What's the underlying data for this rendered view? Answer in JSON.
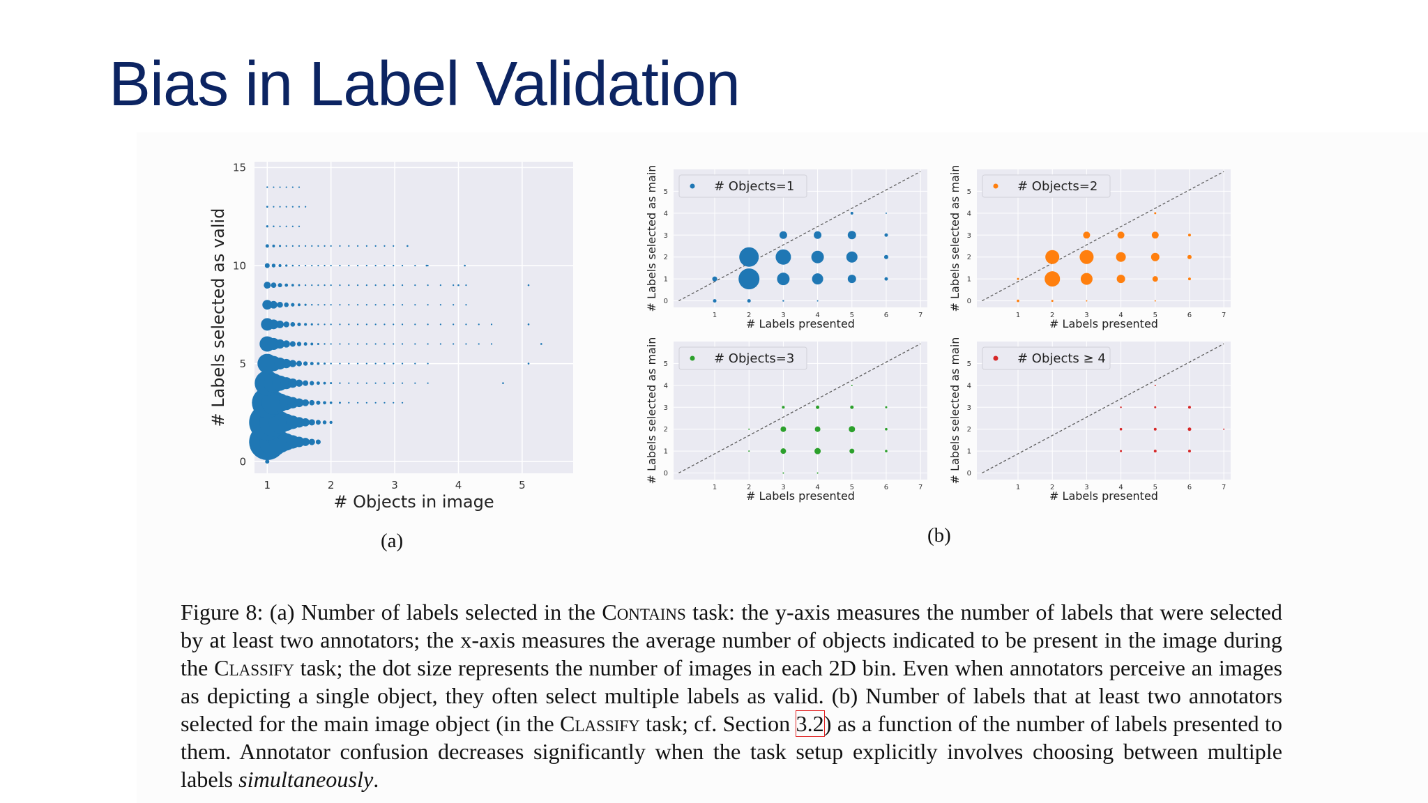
{
  "slide": {
    "title": "Bias in Label Validation"
  },
  "sublabels": {
    "a": "(a)",
    "b": "(b)"
  },
  "caption": {
    "fig": "Figure 8:",
    "p1": "(a) Number of labels selected in the ",
    "sc1": "Contains",
    "p2": " task: the y-axis measures the number of labels that were selected by at least two annotators; the x-axis measures the average number of objects indicated to be present in the image during the ",
    "sc2": "Classify",
    "p3": " task; the dot size represents the number of images in each 2D bin. Even when annotators perceive an images as depicting a single object, they often select multiple labels as valid. (b) Number of labels that at least two annotators selected for the main image object (in the ",
    "sc3": "Classify",
    "p4": " task; cf. Section ",
    "ref": "3.2",
    "p5": ") as a function of the number of labels presented to them. Annotator confusion decreases significantly when the task setup explicitly involves choosing between multiple labels ",
    "em": "simultaneously",
    "p6": "."
  },
  "chart_data": [
    {
      "type": "scatter",
      "title": "",
      "xlabel": "# Objects in image",
      "ylabel": "# Labels selected as valid",
      "xlim": [
        0.8,
        5.8
      ],
      "ylim": [
        -0.6,
        15.3
      ],
      "xticks": [
        1,
        2,
        3,
        4,
        5
      ],
      "yticks": [
        0,
        5,
        10,
        15
      ],
      "grid": true,
      "color": "#1f77b4",
      "note_size": "dot size represents the number of images in each bin",
      "rows": [
        {
          "y": 0,
          "x_max": 1.0,
          "s0": 3
        },
        {
          "y": 1,
          "x_max": 1.8,
          "s0": 26
        },
        {
          "y": 2,
          "x_max": 2.1,
          "s0": 26
        },
        {
          "y": 3,
          "x_max": 3.2,
          "s0": 22
        },
        {
          "y": 4,
          "x_max": 3.6,
          "s0": 18
        },
        {
          "y": 5,
          "x_max": 3.6,
          "s0": 14
        },
        {
          "y": 6,
          "x_max": 4.6,
          "s0": 11
        },
        {
          "y": 7,
          "x_max": 4.6,
          "s0": 9
        },
        {
          "y": 8,
          "x_max": 4.3,
          "s0": 7
        },
        {
          "y": 9,
          "x_max": 4.3,
          "s0": 5
        },
        {
          "y": 10,
          "x_max": 3.6,
          "s0": 3.5
        },
        {
          "y": 11,
          "x_max": 3.0,
          "s0": 2.5
        },
        {
          "y": 12,
          "x_max": 1.5,
          "s0": 1.6
        },
        {
          "y": 13,
          "x_max": 1.6,
          "s0": 1.4
        },
        {
          "y": 14,
          "x_max": 1.5,
          "s0": 1.2
        }
      ],
      "outliers": [
        {
          "x": 3.2,
          "y": 11
        },
        {
          "x": 3.5,
          "y": 10
        },
        {
          "x": 4.1,
          "y": 10
        },
        {
          "x": 4.0,
          "y": 9
        },
        {
          "x": 5.1,
          "y": 9
        },
        {
          "x": 5.1,
          "y": 7
        },
        {
          "x": 5.3,
          "y": 6
        },
        {
          "x": 5.1,
          "y": 5
        },
        {
          "x": 4.7,
          "y": 4
        }
      ]
    },
    {
      "type": "scatter",
      "title": "",
      "legend": "# Objects=1",
      "xlabel": "# Labels presented",
      "ylabel": "# Labels selected as main",
      "xlim": [
        -0.2,
        7.2
      ],
      "ylim": [
        -0.3,
        6.0
      ],
      "xticks": [
        1,
        2,
        3,
        4,
        5,
        6,
        7
      ],
      "yticks": [
        0,
        1,
        2,
        3,
        4,
        5
      ],
      "diagonal": true,
      "color": "#1f77b4",
      "points": [
        {
          "x": 1,
          "y": 0,
          "s": 2.5
        },
        {
          "x": 1,
          "y": 1,
          "s": 3.5
        },
        {
          "x": 2,
          "y": 0,
          "s": 2.5
        },
        {
          "x": 2,
          "y": 1,
          "s": 15
        },
        {
          "x": 2,
          "y": 2,
          "s": 14
        },
        {
          "x": 3,
          "y": 0,
          "s": 1.2
        },
        {
          "x": 3,
          "y": 1,
          "s": 9
        },
        {
          "x": 3,
          "y": 2,
          "s": 11
        },
        {
          "x": 3,
          "y": 3,
          "s": 5.5
        },
        {
          "x": 4,
          "y": 0,
          "s": 1
        },
        {
          "x": 4,
          "y": 1,
          "s": 8
        },
        {
          "x": 4,
          "y": 2,
          "s": 9
        },
        {
          "x": 4,
          "y": 3,
          "s": 5.5
        },
        {
          "x": 5,
          "y": 1,
          "s": 6
        },
        {
          "x": 5,
          "y": 2,
          "s": 8
        },
        {
          "x": 5,
          "y": 3,
          "s": 6
        },
        {
          "x": 5,
          "y": 4,
          "s": 2
        },
        {
          "x": 6,
          "y": 1,
          "s": 2.5
        },
        {
          "x": 6,
          "y": 2,
          "s": 3
        },
        {
          "x": 6,
          "y": 3,
          "s": 2.5
        },
        {
          "x": 6,
          "y": 4,
          "s": 1
        }
      ]
    },
    {
      "type": "scatter",
      "title": "",
      "legend": "# Objects=2",
      "xlabel": "# Labels presented",
      "ylabel": "# Labels selected as main",
      "xlim": [
        -0.2,
        7.2
      ],
      "ylim": [
        -0.3,
        6.0
      ],
      "xticks": [
        1,
        2,
        3,
        4,
        5,
        6,
        7
      ],
      "yticks": [
        0,
        1,
        2,
        3,
        4,
        5
      ],
      "diagonal": true,
      "color": "#ff7f0e",
      "points": [
        {
          "x": 1,
          "y": 0,
          "s": 1.8
        },
        {
          "x": 1,
          "y": 1,
          "s": 1.5
        },
        {
          "x": 2,
          "y": 0,
          "s": 1.5
        },
        {
          "x": 2,
          "y": 1,
          "s": 11
        },
        {
          "x": 2,
          "y": 2,
          "s": 10
        },
        {
          "x": 3,
          "y": 0,
          "s": 1
        },
        {
          "x": 3,
          "y": 1,
          "s": 8.5
        },
        {
          "x": 3,
          "y": 2,
          "s": 10
        },
        {
          "x": 3,
          "y": 3,
          "s": 5
        },
        {
          "x": 4,
          "y": 1,
          "s": 6
        },
        {
          "x": 4,
          "y": 2,
          "s": 7
        },
        {
          "x": 4,
          "y": 3,
          "s": 5
        },
        {
          "x": 5,
          "y": 0,
          "s": 1
        },
        {
          "x": 5,
          "y": 1,
          "s": 4
        },
        {
          "x": 5,
          "y": 2,
          "s": 6
        },
        {
          "x": 5,
          "y": 3,
          "s": 5
        },
        {
          "x": 5,
          "y": 4,
          "s": 1.5
        },
        {
          "x": 6,
          "y": 1,
          "s": 2
        },
        {
          "x": 6,
          "y": 2,
          "s": 3
        },
        {
          "x": 6,
          "y": 3,
          "s": 2
        }
      ]
    },
    {
      "type": "scatter",
      "title": "",
      "legend": "# Objects=3",
      "xlabel": "# Labels presented",
      "ylabel": "# Labels selected as main",
      "xlim": [
        -0.2,
        7.2
      ],
      "ylim": [
        -0.3,
        6.0
      ],
      "xticks": [
        1,
        2,
        3,
        4,
        5,
        6,
        7
      ],
      "yticks": [
        0,
        1,
        2,
        3,
        4,
        5
      ],
      "diagonal": true,
      "color": "#2ca02c",
      "points": [
        {
          "x": 2,
          "y": 1,
          "s": 1
        },
        {
          "x": 2,
          "y": 2,
          "s": 1
        },
        {
          "x": 3,
          "y": 0,
          "s": 1
        },
        {
          "x": 3,
          "y": 1,
          "s": 4
        },
        {
          "x": 3,
          "y": 2,
          "s": 4
        },
        {
          "x": 3,
          "y": 3,
          "s": 2
        },
        {
          "x": 4,
          "y": 0,
          "s": 1
        },
        {
          "x": 4,
          "y": 1,
          "s": 4.5
        },
        {
          "x": 4,
          "y": 2,
          "s": 4
        },
        {
          "x": 4,
          "y": 3,
          "s": 2.5
        },
        {
          "x": 5,
          "y": 1,
          "s": 3.5
        },
        {
          "x": 5,
          "y": 2,
          "s": 4.5
        },
        {
          "x": 5,
          "y": 3,
          "s": 2.5
        },
        {
          "x": 5,
          "y": 4,
          "s": 1
        },
        {
          "x": 6,
          "y": 1,
          "s": 1.8
        },
        {
          "x": 6,
          "y": 2,
          "s": 1.8
        },
        {
          "x": 6,
          "y": 3,
          "s": 1.5
        }
      ]
    },
    {
      "type": "scatter",
      "title": "",
      "legend": "# Objects ≥ 4",
      "xlabel": "# Labels presented",
      "ylabel": "# Labels selected as main",
      "xlim": [
        -0.2,
        7.2
      ],
      "ylim": [
        -0.3,
        6.0
      ],
      "xticks": [
        1,
        2,
        3,
        4,
        5,
        6,
        7
      ],
      "yticks": [
        0,
        1,
        2,
        3,
        4,
        5
      ],
      "diagonal": true,
      "color": "#d62728",
      "points": [
        {
          "x": 4,
          "y": 1,
          "s": 1.5
        },
        {
          "x": 4,
          "y": 2,
          "s": 1.8
        },
        {
          "x": 4,
          "y": 3,
          "s": 1.2
        },
        {
          "x": 5,
          "y": 1,
          "s": 2
        },
        {
          "x": 5,
          "y": 2,
          "s": 2
        },
        {
          "x": 5,
          "y": 3,
          "s": 1.5
        },
        {
          "x": 5,
          "y": 4,
          "s": 1
        },
        {
          "x": 6,
          "y": 1,
          "s": 2
        },
        {
          "x": 6,
          "y": 2,
          "s": 2.5
        },
        {
          "x": 6,
          "y": 3,
          "s": 2
        },
        {
          "x": 7,
          "y": 2,
          "s": 1
        }
      ]
    }
  ]
}
